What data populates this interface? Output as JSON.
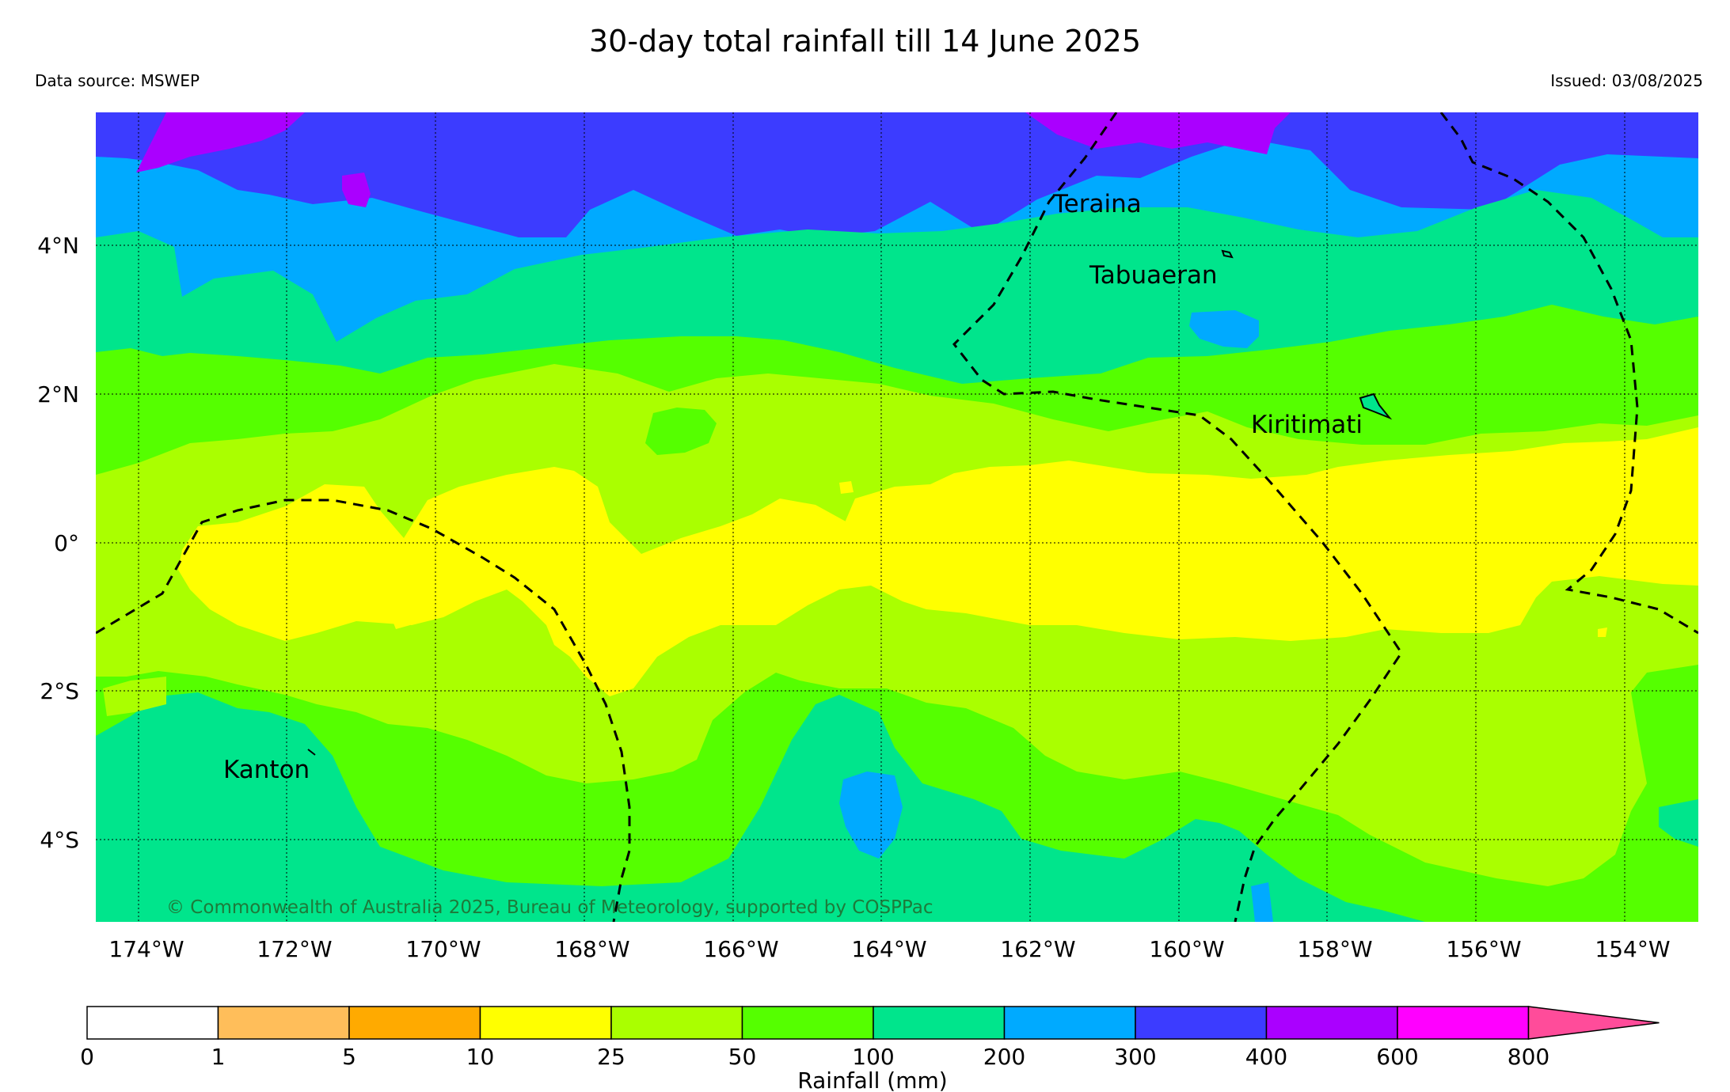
{
  "title": "30-day total rainfall till 14 June 2025",
  "data_source": "Data source: MSWEP",
  "issued": "Issued: 03/08/2025",
  "copyright": "© Commonwealth of Australia 2025, Bureau of Meteorology, supported by COSPPac",
  "islands": [
    "Teraina",
    "Tabuaeran",
    "Kiritimati",
    "Kanton"
  ],
  "lat_ticks": [
    "4°N",
    "2°N",
    "0°",
    "2°S",
    "4°S"
  ],
  "lon_ticks": [
    "174°W",
    "172°W",
    "170°W",
    "168°W",
    "166°W",
    "164°W",
    "162°W",
    "160°W",
    "158°W",
    "156°W",
    "154°W"
  ],
  "colorbar": {
    "label": "Rainfall (mm)",
    "ticks": [
      "0",
      "1",
      "5",
      "10",
      "25",
      "50",
      "100",
      "200",
      "300",
      "400",
      "600",
      "800"
    ],
    "colors": [
      "#ffffff",
      "#ffbe5a",
      "#ffaa00",
      "#ffff00",
      "#aaff00",
      "#55ff00",
      "#00e58c",
      "#00aaff",
      "#3c3cff",
      "#aa00ff",
      "#ff00ff"
    ],
    "extend_color": "#ff4c9a"
  },
  "zone_colors": {
    "c200_300": "#00aaff",
    "c100_200": "#00e58c",
    "c50_100": "#55ff00",
    "c25_50": "#aaff00",
    "c10_25": "#ffff00",
    "c300_400": "#3c3cff",
    "c400_600": "#aa00ff"
  }
}
